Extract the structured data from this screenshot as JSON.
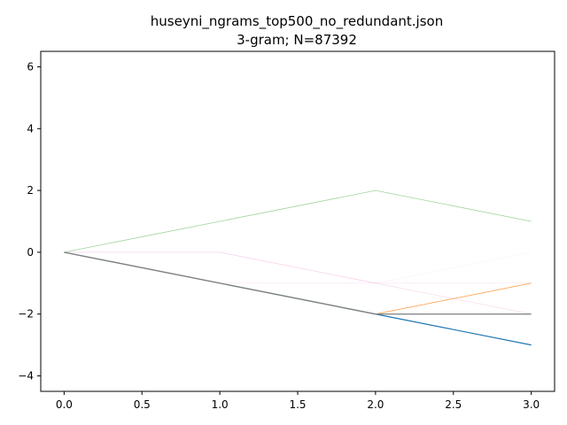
{
  "chart_data": {
    "type": "line",
    "title": "huseyni_ngrams_top500_no_redundant.json",
    "subtitle": "3-gram; N=87392",
    "xlabel": "",
    "ylabel": "",
    "xlim": [
      -0.15,
      3.15
    ],
    "ylim": [
      -4.5,
      6.5
    ],
    "x_ticks": [
      0.0,
      0.5,
      1.0,
      1.5,
      2.0,
      2.5,
      3.0
    ],
    "x_tick_labels": [
      "0.0",
      "0.5",
      "1.0",
      "1.5",
      "2.0",
      "2.5",
      "3.0"
    ],
    "y_ticks": [
      -4,
      -2,
      0,
      2,
      4,
      6
    ],
    "y_tick_labels": [
      "−4",
      "−2",
      "0",
      "2",
      "4",
      "6"
    ],
    "grid": false,
    "legend": false,
    "series": [
      {
        "x": [
          0,
          1,
          2,
          3
        ],
        "values": [
          0,
          -1,
          -2,
          -3
        ],
        "color": "#1f77b4",
        "opacity": 1.0,
        "width": 1.2
      },
      {
        "x": [
          0,
          1,
          2,
          3
        ],
        "values": [
          0,
          -1,
          -2,
          -1
        ],
        "color": "#ff7f0e",
        "opacity": 0.7,
        "width": 0.9
      },
      {
        "x": [
          0,
          1,
          2,
          3
        ],
        "values": [
          0,
          1,
          2,
          1
        ],
        "color": "#2ca02c",
        "opacity": 0.45,
        "width": 0.8
      },
      {
        "x": [
          0,
          1,
          2,
          3
        ],
        "values": [
          0,
          0,
          -1,
          -2
        ],
        "color": "#e377c2",
        "opacity": 0.25,
        "width": 0.8
      },
      {
        "x": [
          0,
          1,
          2,
          3
        ],
        "values": [
          0,
          -1,
          -1,
          -1
        ],
        "color": "#e377c2",
        "opacity": 0.15,
        "width": 0.8
      },
      {
        "x": [
          0,
          1,
          2,
          3
        ],
        "values": [
          0,
          0,
          -1,
          0
        ],
        "color": "#e377c2",
        "opacity": 0.08,
        "width": 0.8
      },
      {
        "x": [
          0,
          1,
          2,
          3
        ],
        "values": [
          0,
          -1,
          -2,
          -2
        ],
        "color": "#7f7f7f",
        "opacity": 1.0,
        "width": 1.2
      }
    ]
  }
}
